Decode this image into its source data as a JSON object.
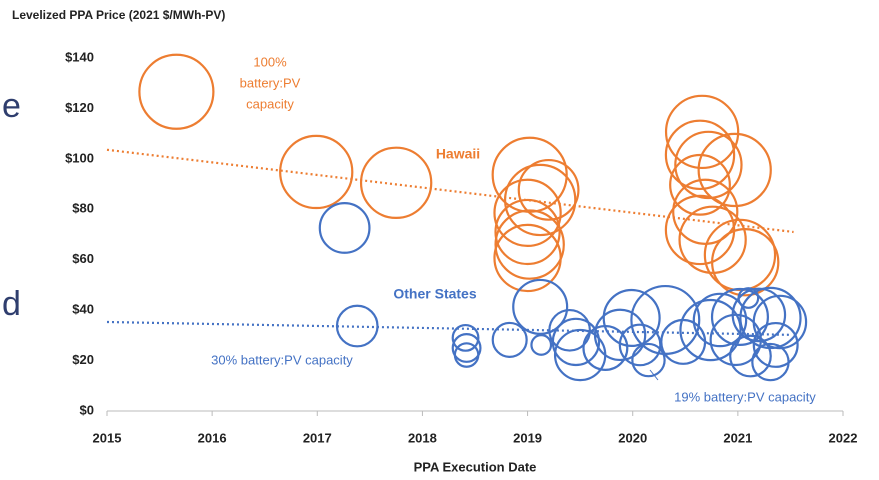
{
  "fragments": [
    "e",
    "d"
  ],
  "chart_data": {
    "type": "scatter",
    "title": "Levelized PPA Price (2021 $/MWh-PV)",
    "x_label": "PPA Execution Date",
    "xlim": [
      2015,
      2022
    ],
    "xticks": [
      2015,
      2016,
      2017,
      2018,
      2019,
      2020,
      2021,
      2022
    ],
    "ylim": [
      0,
      140
    ],
    "yticks": [
      {
        "value": 0,
        "label": "$0"
      },
      {
        "value": 20,
        "label": "$20"
      },
      {
        "value": 40,
        "label": "$40"
      },
      {
        "value": 60,
        "label": "$60"
      },
      {
        "value": 80,
        "label": "$80"
      },
      {
        "value": 100,
        "label": "$100"
      },
      {
        "value": 120,
        "label": "$120"
      },
      {
        "value": 140,
        "label": "$140"
      }
    ],
    "grid": false,
    "series": [
      {
        "name": "Hawaii",
        "color": "#ED7D31",
        "x": [
          2015.66,
          2016.99,
          2017.75,
          2019.02,
          2019.12,
          2019.0,
          2019.0,
          2019.02,
          2019.0,
          2019.2,
          2020.66,
          2020.64,
          2020.72,
          2020.97,
          2020.64,
          2020.69,
          2020.64,
          2020.76,
          2021.02,
          2021.07
        ],
        "values": [
          126.6,
          94.8,
          90.5,
          93.7,
          83.7,
          78.6,
          71,
          66,
          60.7,
          87.7,
          110.7,
          101.6,
          97.6,
          95.6,
          89.7,
          79,
          71.8,
          67.9,
          61.9,
          59
        ],
        "sizes": [
          100,
          95,
          90,
          100,
          90,
          80,
          75,
          85,
          80,
          65,
          95,
          85,
          80,
          95,
          65,
          75,
          85,
          80,
          90,
          80
        ],
        "trend": {
          "x": [
            2015,
            2021.53
          ],
          "values": [
            103.6,
            71
          ]
        }
      },
      {
        "name": "Other States",
        "color": "#4472C4",
        "x": [
          2017.26,
          2017.38,
          2018.41,
          2018.42,
          2018.42,
          2018.83,
          2019.12,
          2019.13,
          2019.46,
          2019.5,
          2019.4,
          2019.74,
          2019.88,
          2019.99,
          2020.15,
          2020.31,
          2020.07,
          2020.48,
          2020.74,
          2020.83,
          2021.02,
          2020.98,
          2021.1,
          2021.2,
          2021.31,
          2021.4,
          2021.36,
          2021.31,
          2021.12
        ],
        "values": [
          72.6,
          33.7,
          29,
          25,
          22.2,
          28.2,
          41.3,
          26.2,
          27.4,
          22.2,
          32,
          25,
          30.2,
          36.9,
          20.2,
          36.1,
          26.2,
          27.4,
          32.1,
          36.1,
          37.3,
          28.2,
          44.8,
          38.1,
          36.9,
          35.3,
          26.2,
          19.4,
          21.8
        ],
        "sizes": [
          45,
          30,
          12,
          14,
          10,
          21,
          53,
          7,
          39,
          46,
          30,
          35,
          46,
          57,
          19,
          84,
          30,
          35,
          66,
          50,
          57,
          46,
          7,
          50,
          66,
          50,
          35,
          24,
          30
        ],
        "trend": {
          "x": [
            2015,
            2021.5
          ],
          "values": [
            35.3,
            30.2
          ]
        }
      }
    ],
    "annotations": [
      {
        "lines": [
          "100%",
          "battery:PV",
          "capacity"
        ],
        "color": "#ED7D31"
      },
      {
        "lines": [
          "30% battery:PV capacity"
        ],
        "color": "#4472C4"
      },
      {
        "lines": [
          "19% battery:PV capacity"
        ],
        "color": "#4472C4"
      }
    ]
  }
}
